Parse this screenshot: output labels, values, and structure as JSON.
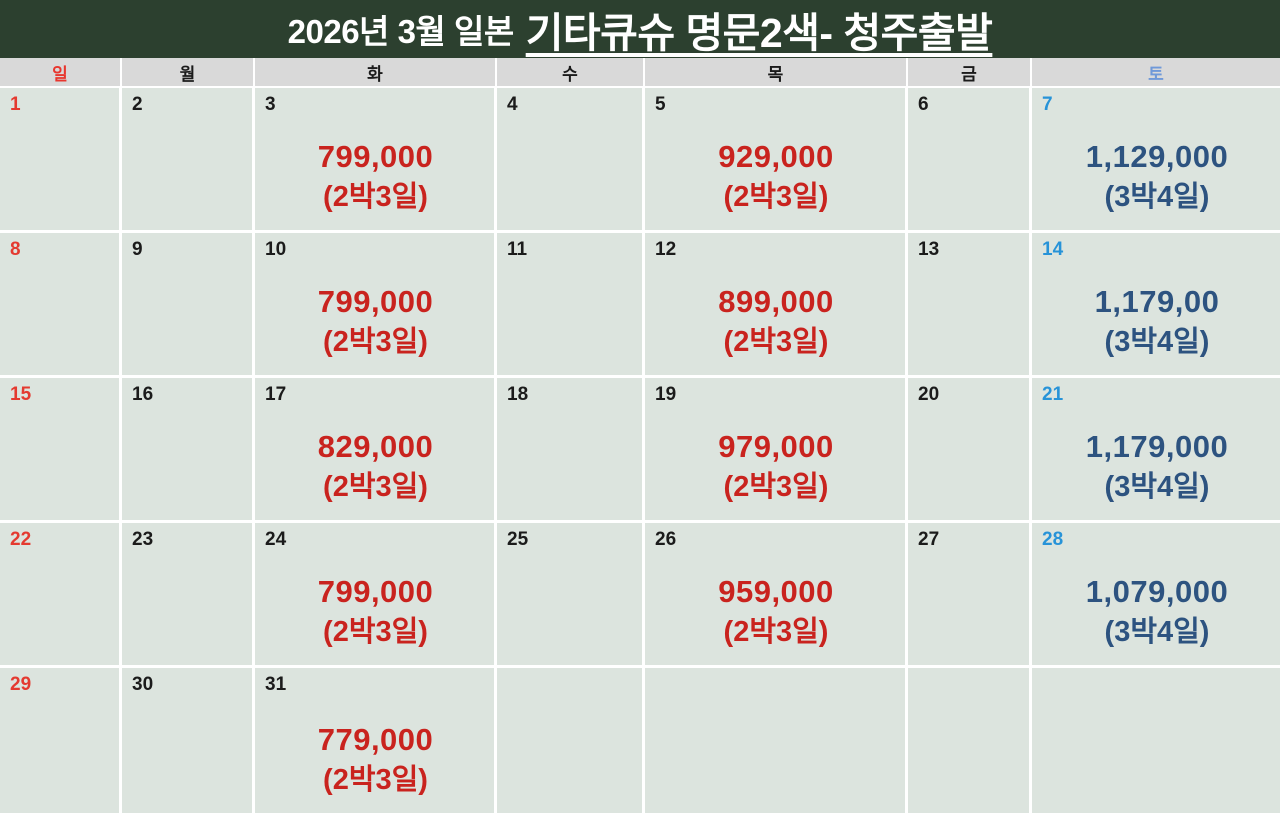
{
  "header": {
    "title_prefix": "2026년 3월 일본",
    "title_main": "기타큐슈 명문2색- 청주출발"
  },
  "weekdays": [
    {
      "label": "일",
      "type": "sun"
    },
    {
      "label": "월",
      "type": "weekday"
    },
    {
      "label": "화",
      "type": "weekday"
    },
    {
      "label": "수",
      "type": "weekday"
    },
    {
      "label": "목",
      "type": "weekday"
    },
    {
      "label": "금",
      "type": "weekday"
    },
    {
      "label": "토",
      "type": "sat"
    }
  ],
  "colors": {
    "header_bg": "#2c402f",
    "title_text": "#ffffff",
    "weekday_bg": "#d9d9d9",
    "cell_bg": "#dce4de",
    "sunday_red": "#e43a30",
    "saturday_date_blue": "#2793d8",
    "saturday_header_blue": "#6f99d9",
    "price_red": "#c9231e",
    "price_navy": "#2d5380"
  },
  "calendar": {
    "weeks": [
      [
        {
          "date": "1",
          "day_type": "sun"
        },
        {
          "date": "2"
        },
        {
          "date": "3",
          "price": "799,000",
          "duration": "(2박3일)",
          "price_type": "red"
        },
        {
          "date": "4"
        },
        {
          "date": "5",
          "price": "929,000",
          "duration": "(2박3일)",
          "price_type": "red"
        },
        {
          "date": "6"
        },
        {
          "date": "7",
          "day_type": "sat",
          "price": "1,129,000",
          "duration": "(3박4일)",
          "price_type": "navy"
        }
      ],
      [
        {
          "date": "8",
          "day_type": "sun"
        },
        {
          "date": "9"
        },
        {
          "date": "10",
          "price": "799,000",
          "duration": "(2박3일)",
          "price_type": "red"
        },
        {
          "date": "11"
        },
        {
          "date": "12",
          "price": "899,000",
          "duration": "(2박3일)",
          "price_type": "red"
        },
        {
          "date": "13"
        },
        {
          "date": "14",
          "day_type": "sat",
          "price": "1,179,00",
          "duration": "(3박4일)",
          "price_type": "navy"
        }
      ],
      [
        {
          "date": "15",
          "day_type": "sun"
        },
        {
          "date": "16"
        },
        {
          "date": "17",
          "price": "829,000",
          "duration": "(2박3일)",
          "price_type": "red"
        },
        {
          "date": "18"
        },
        {
          "date": "19",
          "price": "979,000",
          "duration": "(2박3일)",
          "price_type": "red"
        },
        {
          "date": "20"
        },
        {
          "date": "21",
          "day_type": "sat",
          "price": "1,179,000",
          "duration": "(3박4일)",
          "price_type": "navy"
        }
      ],
      [
        {
          "date": "22",
          "day_type": "sun"
        },
        {
          "date": "23"
        },
        {
          "date": "24",
          "price": "799,000",
          "duration": "(2박3일)",
          "price_type": "red"
        },
        {
          "date": "25"
        },
        {
          "date": "26",
          "price": "959,000",
          "duration": "(2박3일)",
          "price_type": "red"
        },
        {
          "date": "27"
        },
        {
          "date": "28",
          "day_type": "sat",
          "price": "1,079,000",
          "duration": "(3박4일)",
          "price_type": "navy"
        }
      ],
      [
        {
          "date": "29",
          "day_type": "sun"
        },
        {
          "date": "30"
        },
        {
          "date": "31",
          "price": "779,000",
          "duration": "(2박3일)",
          "price_type": "red"
        },
        {},
        {},
        {},
        {}
      ]
    ]
  }
}
